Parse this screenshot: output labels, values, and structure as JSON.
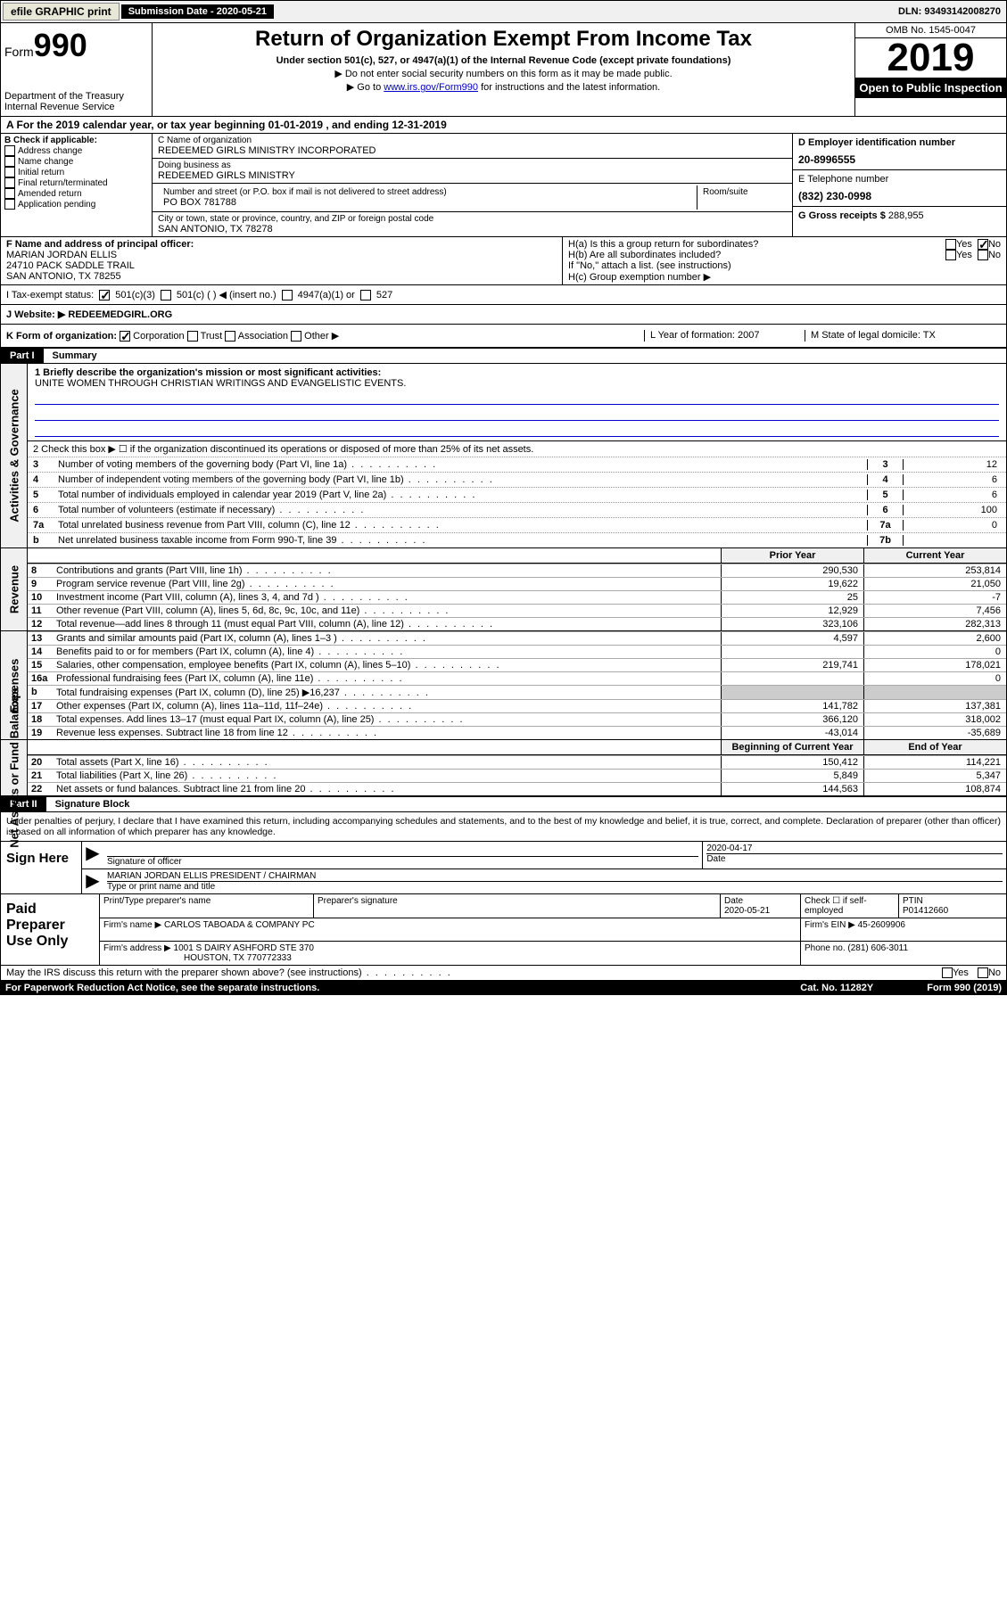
{
  "topbar": {
    "efile": "efile GRAPHIC print",
    "submission_label": "Submission Date - 2020-05-21",
    "dln": "DLN: 93493142008270"
  },
  "header": {
    "form_label": "Form",
    "form_number": "990",
    "dept": "Department of the Treasury\nInternal Revenue Service",
    "title": "Return of Organization Exempt From Income Tax",
    "subtitle": "Under section 501(c), 527, or 4947(a)(1) of the Internal Revenue Code (except private foundations)",
    "arrow1": "▶ Do not enter social security numbers on this form as it may be made public.",
    "arrow2_pre": "▶ Go to ",
    "arrow2_link": "www.irs.gov/Form990",
    "arrow2_post": " for instructions and the latest information.",
    "omb": "OMB No. 1545-0047",
    "year": "2019",
    "open_public": "Open to Public Inspection"
  },
  "period": "A For the 2019 calendar year, or tax year beginning 01-01-2019   , and ending 12-31-2019",
  "boxB": {
    "header": "B Check if applicable:",
    "items": [
      "Address change",
      "Name change",
      "Initial return",
      "Final return/terminated",
      "Amended return",
      "Application pending"
    ]
  },
  "boxC": {
    "name_label": "C Name of organization",
    "name": "REDEEMED GIRLS MINISTRY INCORPORATED",
    "dba_label": "Doing business as",
    "dba": "REDEEMED GIRLS MINISTRY",
    "addr_label": "Number and street (or P.O. box if mail is not delivered to street address)",
    "room_label": "Room/suite",
    "addr": "PO BOX 781788",
    "city_label": "City or town, state or province, country, and ZIP or foreign postal code",
    "city": "SAN ANTONIO, TX  78278"
  },
  "boxD": {
    "label": "D Employer identification number",
    "value": "20-8996555"
  },
  "boxE": {
    "label": "E Telephone number",
    "value": "(832) 230-0998"
  },
  "boxG": {
    "label": "G Gross receipts $",
    "value": "288,955"
  },
  "boxF": {
    "label": "F  Name and address of principal officer:",
    "name": "MARIAN JORDAN ELLIS",
    "addr1": "24710 PACK SADDLE TRAIL",
    "addr2": "SAN ANTONIO, TX  78255"
  },
  "boxH": {
    "ha": "H(a)  Is this a group return for subordinates?",
    "hb": "H(b)  Are all subordinates included?",
    "hb_note": "If \"No,\" attach a list. (see instructions)",
    "hc": "H(c)  Group exemption number ▶",
    "yes": "Yes",
    "no": "No"
  },
  "taxStatus": {
    "label": "I   Tax-exempt status:",
    "opt1": "501(c)(3)",
    "opt2": "501(c) (  ) ◀ (insert no.)",
    "opt3": "4947(a)(1) or",
    "opt4": "527"
  },
  "website": {
    "label": "J   Website: ▶",
    "value": "REDEEMEDGIRL.ORG"
  },
  "rowK": {
    "label": "K Form of organization:",
    "opts": [
      "Corporation",
      "Trust",
      "Association",
      "Other ▶"
    ],
    "L": "L Year of formation: 2007",
    "M": "M State of legal domicile: TX"
  },
  "parts": {
    "p1": "Part I",
    "p1_title": "Summary",
    "p2": "Part II",
    "p2_title": "Signature Block"
  },
  "summary": {
    "line1_label": "1  Briefly describe the organization's mission or most significant activities:",
    "line1_text": "UNITE WOMEN THROUGH CHRISTIAN WRITINGS AND EVANGELISTIC EVENTS.",
    "line2": "2   Check this box ▶ ☐  if the organization discontinued its operations or disposed of more than 25% of its net assets.",
    "governance": [
      {
        "n": "3",
        "d": "Number of voting members of the governing body (Part VI, line 1a)",
        "b": "3",
        "v": "12"
      },
      {
        "n": "4",
        "d": "Number of independent voting members of the governing body (Part VI, line 1b)",
        "b": "4",
        "v": "6"
      },
      {
        "n": "5",
        "d": "Total number of individuals employed in calendar year 2019 (Part V, line 2a)",
        "b": "5",
        "v": "6"
      },
      {
        "n": "6",
        "d": "Total number of volunteers (estimate if necessary)",
        "b": "6",
        "v": "100"
      },
      {
        "n": "7a",
        "d": "Total unrelated business revenue from Part VIII, column (C), line 12",
        "b": "7a",
        "v": "0"
      },
      {
        "n": "b",
        "d": "Net unrelated business taxable income from Form 990-T, line 39",
        "b": "7b",
        "v": ""
      }
    ],
    "col_prior": "Prior Year",
    "col_current": "Current Year",
    "revenue": [
      {
        "n": "8",
        "d": "Contributions and grants (Part VIII, line 1h)",
        "p": "290,530",
        "c": "253,814"
      },
      {
        "n": "9",
        "d": "Program service revenue (Part VIII, line 2g)",
        "p": "19,622",
        "c": "21,050"
      },
      {
        "n": "10",
        "d": "Investment income (Part VIII, column (A), lines 3, 4, and 7d )",
        "p": "25",
        "c": "-7"
      },
      {
        "n": "11",
        "d": "Other revenue (Part VIII, column (A), lines 5, 6d, 8c, 9c, 10c, and 11e)",
        "p": "12,929",
        "c": "7,456"
      },
      {
        "n": "12",
        "d": "Total revenue—add lines 8 through 11 (must equal Part VIII, column (A), line 12)",
        "p": "323,106",
        "c": "282,313"
      }
    ],
    "expenses": [
      {
        "n": "13",
        "d": "Grants and similar amounts paid (Part IX, column (A), lines 1–3 )",
        "p": "4,597",
        "c": "2,600"
      },
      {
        "n": "14",
        "d": "Benefits paid to or for members (Part IX, column (A), line 4)",
        "p": "",
        "c": "0"
      },
      {
        "n": "15",
        "d": "Salaries, other compensation, employee benefits (Part IX, column (A), lines 5–10)",
        "p": "219,741",
        "c": "178,021"
      },
      {
        "n": "16a",
        "d": "Professional fundraising fees (Part IX, column (A), line 11e)",
        "p": "",
        "c": "0"
      },
      {
        "n": "b",
        "d": "Total fundraising expenses (Part IX, column (D), line 25) ▶16,237",
        "p": "shaded",
        "c": "shaded"
      },
      {
        "n": "17",
        "d": "Other expenses (Part IX, column (A), lines 11a–11d, 11f–24e)",
        "p": "141,782",
        "c": "137,381"
      },
      {
        "n": "18",
        "d": "Total expenses. Add lines 13–17 (must equal Part IX, column (A), line 25)",
        "p": "366,120",
        "c": "318,002"
      },
      {
        "n": "19",
        "d": "Revenue less expenses. Subtract line 18 from line 12",
        "p": "-43,014",
        "c": "-35,689"
      }
    ],
    "col_begin": "Beginning of Current Year",
    "col_end": "End of Year",
    "netassets": [
      {
        "n": "20",
        "d": "Total assets (Part X, line 16)",
        "p": "150,412",
        "c": "114,221"
      },
      {
        "n": "21",
        "d": "Total liabilities (Part X, line 26)",
        "p": "5,849",
        "c": "5,347"
      },
      {
        "n": "22",
        "d": "Net assets or fund balances. Subtract line 21 from line 20",
        "p": "144,563",
        "c": "108,874"
      }
    ],
    "side_labels": {
      "gov": "Activities & Governance",
      "rev": "Revenue",
      "exp": "Expenses",
      "net": "Net Assets or Fund Balances"
    }
  },
  "sigblock": "Under penalties of perjury, I declare that I have examined this return, including accompanying schedules and statements, and to the best of my knowledge and belief, it is true, correct, and complete. Declaration of preparer (other than officer) is based on all information of which preparer has any knowledge.",
  "sign": {
    "here": "Sign Here",
    "sig_label": "Signature of officer",
    "date": "2020-04-17",
    "date_label": "Date",
    "name": "MARIAN JORDAN ELLIS  PRESIDENT / CHAIRMAN",
    "name_label": "Type or print name and title"
  },
  "paid": {
    "title": "Paid Preparer Use Only",
    "h1": "Print/Type preparer's name",
    "h2": "Preparer's signature",
    "h3": "Date",
    "h3v": "2020-05-21",
    "h4": "Check ☐ if self-employed",
    "h5": "PTIN",
    "h5v": "P01412660",
    "firm_label": "Firm's name    ▶",
    "firm": "CARLOS TABOADA & COMPANY PC",
    "ein_label": "Firm's EIN ▶",
    "ein": "45-2609906",
    "addr_label": "Firm's address ▶",
    "addr1": "1001 S DAIRY ASHFORD STE 370",
    "addr2": "HOUSTON, TX  770772333",
    "phone_label": "Phone no.",
    "phone": "(281) 606-3011"
  },
  "footer": {
    "discuss": "May the IRS discuss this return with the preparer shown above? (see instructions)",
    "yes": "Yes",
    "no": "No",
    "pra": "For Paperwork Reduction Act Notice, see the separate instructions.",
    "cat": "Cat. No. 11282Y",
    "form": "Form 990 (2019)"
  }
}
